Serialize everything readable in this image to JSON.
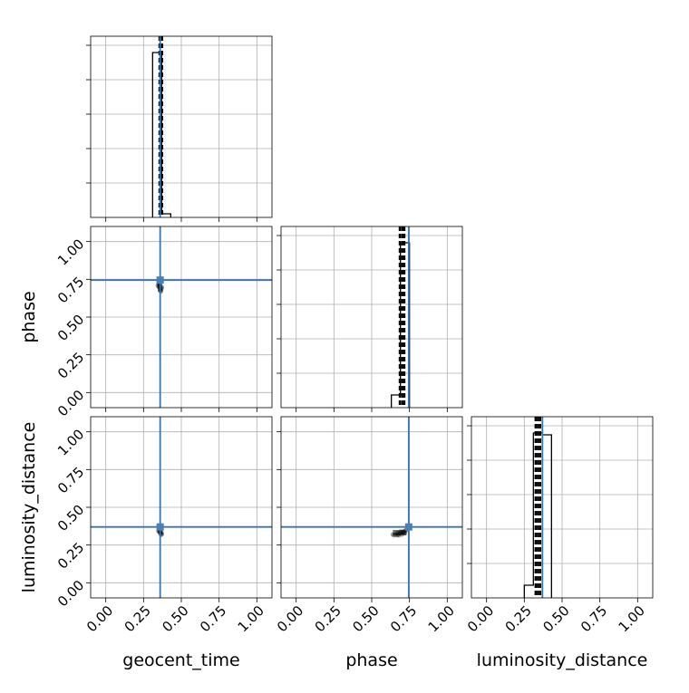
{
  "chart_data": {
    "type": "corner",
    "parameters": [
      "geocent_time",
      "phase",
      "luminosity_distance"
    ],
    "axis_range": [
      -0.1,
      1.1
    ],
    "ticks": [
      0.0,
      0.25,
      0.5,
      0.75,
      1.0
    ],
    "tick_labels": [
      "0.00",
      "0.25",
      "0.50",
      "0.75",
      "1.00"
    ],
    "grid": true,
    "truth_color": "#3a75b0",
    "truths": {
      "geocent_time": 0.36,
      "phase": 0.745,
      "luminosity_distance": 0.37
    },
    "histograms": {
      "geocent_time": {
        "bins": [
          {
            "x0": 0.31,
            "x1": 0.37,
            "height": 0.91
          },
          {
            "x0": 0.37,
            "x1": 0.43,
            "height": 0.02
          }
        ],
        "quantiles": [
          0.356,
          0.366,
          0.373
        ]
      },
      "phase": {
        "bins": [
          {
            "x0": 0.63,
            "x1": 0.69,
            "height": 0.07
          },
          {
            "x0": 0.69,
            "x1": 0.75,
            "height": 0.91
          }
        ],
        "quantiles": [
          0.686,
          0.702,
          0.716
        ]
      },
      "luminosity_distance": {
        "bins": [
          {
            "x0": 0.25,
            "x1": 0.31,
            "height": 0.07
          },
          {
            "x0": 0.31,
            "x1": 0.37,
            "height": 0.91
          },
          {
            "x0": 0.37,
            "x1": 0.43,
            "height": 0.9
          }
        ],
        "quantiles": [
          0.325,
          0.34,
          0.355
        ]
      }
    },
    "samples_2d": [
      {
        "x": "geocent_time",
        "y": "phase",
        "points": [
          [
            0.35,
            0.72
          ],
          [
            0.355,
            0.7
          ],
          [
            0.36,
            0.69
          ],
          [
            0.365,
            0.68
          ],
          [
            0.37,
            0.7
          ],
          [
            0.36,
            0.71
          ],
          [
            0.35,
            0.7
          ],
          [
            0.365,
            0.67
          ],
          [
            0.37,
            0.69
          ],
          [
            0.355,
            0.72
          ],
          [
            0.36,
            0.675
          ],
          [
            0.345,
            0.71
          ]
        ]
      },
      {
        "x": "geocent_time",
        "y": "luminosity_distance",
        "points": [
          [
            0.35,
            0.35
          ],
          [
            0.355,
            0.34
          ],
          [
            0.36,
            0.33
          ],
          [
            0.365,
            0.32
          ],
          [
            0.37,
            0.33
          ],
          [
            0.36,
            0.345
          ],
          [
            0.35,
            0.34
          ],
          [
            0.365,
            0.335
          ],
          [
            0.37,
            0.32
          ]
        ]
      },
      {
        "x": "phase",
        "y": "luminosity_distance",
        "points": [
          [
            0.64,
            0.32
          ],
          [
            0.65,
            0.315
          ],
          [
            0.66,
            0.32
          ],
          [
            0.67,
            0.33
          ],
          [
            0.68,
            0.325
          ],
          [
            0.69,
            0.33
          ],
          [
            0.7,
            0.335
          ],
          [
            0.71,
            0.34
          ],
          [
            0.72,
            0.345
          ],
          [
            0.7,
            0.32
          ],
          [
            0.69,
            0.34
          ],
          [
            0.71,
            0.33
          ],
          [
            0.68,
            0.315
          ],
          [
            0.73,
            0.35
          ],
          [
            0.72,
            0.33
          ],
          [
            0.67,
            0.315
          ]
        ]
      }
    ]
  }
}
